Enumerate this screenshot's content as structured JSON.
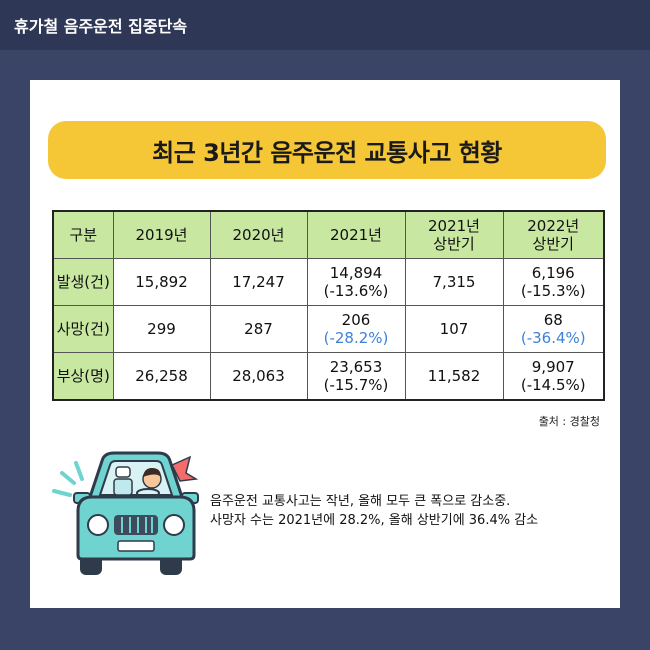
{
  "header": {
    "title": "휴가철 음주운전 집중단속"
  },
  "banner": {
    "title": "최근 3년간 음주운전 교통사고 현황"
  },
  "table": {
    "headers": [
      "구분",
      "2019년",
      "2020년",
      "2021년",
      "2021년\n상반기",
      "2022년\n상반기"
    ],
    "rows": [
      {
        "label": "발생(건)",
        "cells": [
          {
            "value": "15,892"
          },
          {
            "value": "17,247"
          },
          {
            "value": "14,894",
            "change": "(-13.6%)"
          },
          {
            "value": "7,315"
          },
          {
            "value": "6,196",
            "change": "(-15.3%)"
          }
        ]
      },
      {
        "label": "사망(건)",
        "cells": [
          {
            "value": "299"
          },
          {
            "value": "287"
          },
          {
            "value": "206",
            "change": "(-28.2%)"
          },
          {
            "value": "107"
          },
          {
            "value": "68",
            "change": "(-36.4%)"
          }
        ]
      },
      {
        "label": "부상(명)",
        "cells": [
          {
            "value": "26,258"
          },
          {
            "value": "28,063"
          },
          {
            "value": "23,653",
            "change": "(-15.7%)"
          },
          {
            "value": "11,582"
          },
          {
            "value": "9,907",
            "change": "(-14.5%)"
          }
        ]
      }
    ]
  },
  "source": "출처 : 경찰청",
  "summary": {
    "line1": "음주운전 교통사고는 작년, 올해 모두 큰 폭으로 감소중.",
    "line2": "사망자 수는 2021년에 28.2%, 올해 상반기에 36.4% 감소"
  },
  "illustration": {
    "icon": "car-driver-icon",
    "color": "#6fd3cf"
  },
  "colors": {
    "background": "#3a4466",
    "banner": "#f5c736",
    "table_header": "#c8e7a0",
    "highlight": "#3c82d8"
  }
}
